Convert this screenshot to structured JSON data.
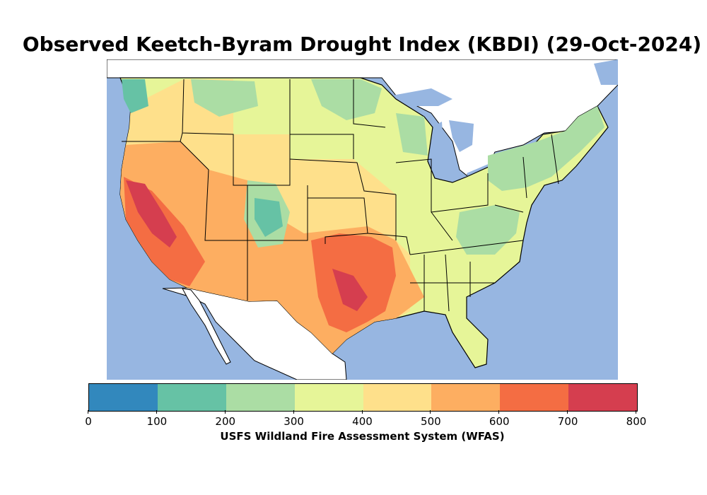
{
  "title": "Observed Keetch-Byram Drought Index (KBDI) (29-Oct-2024)",
  "colorbar": {
    "label": "USFS Wildland Fire Assessment System (WFAS)",
    "ticks": [
      "0",
      "100",
      "200",
      "300",
      "400",
      "500",
      "600",
      "700",
      "800"
    ],
    "colors": [
      "#3288bd",
      "#66c2a5",
      "#abdda4",
      "#e6f598",
      "#fee08b",
      "#fdae61",
      "#f46d43",
      "#d53e4f"
    ]
  },
  "map": {
    "ocean_color": "#97b6e1",
    "land_outside_color": "#ffffff",
    "border_color": "#000000"
  }
}
